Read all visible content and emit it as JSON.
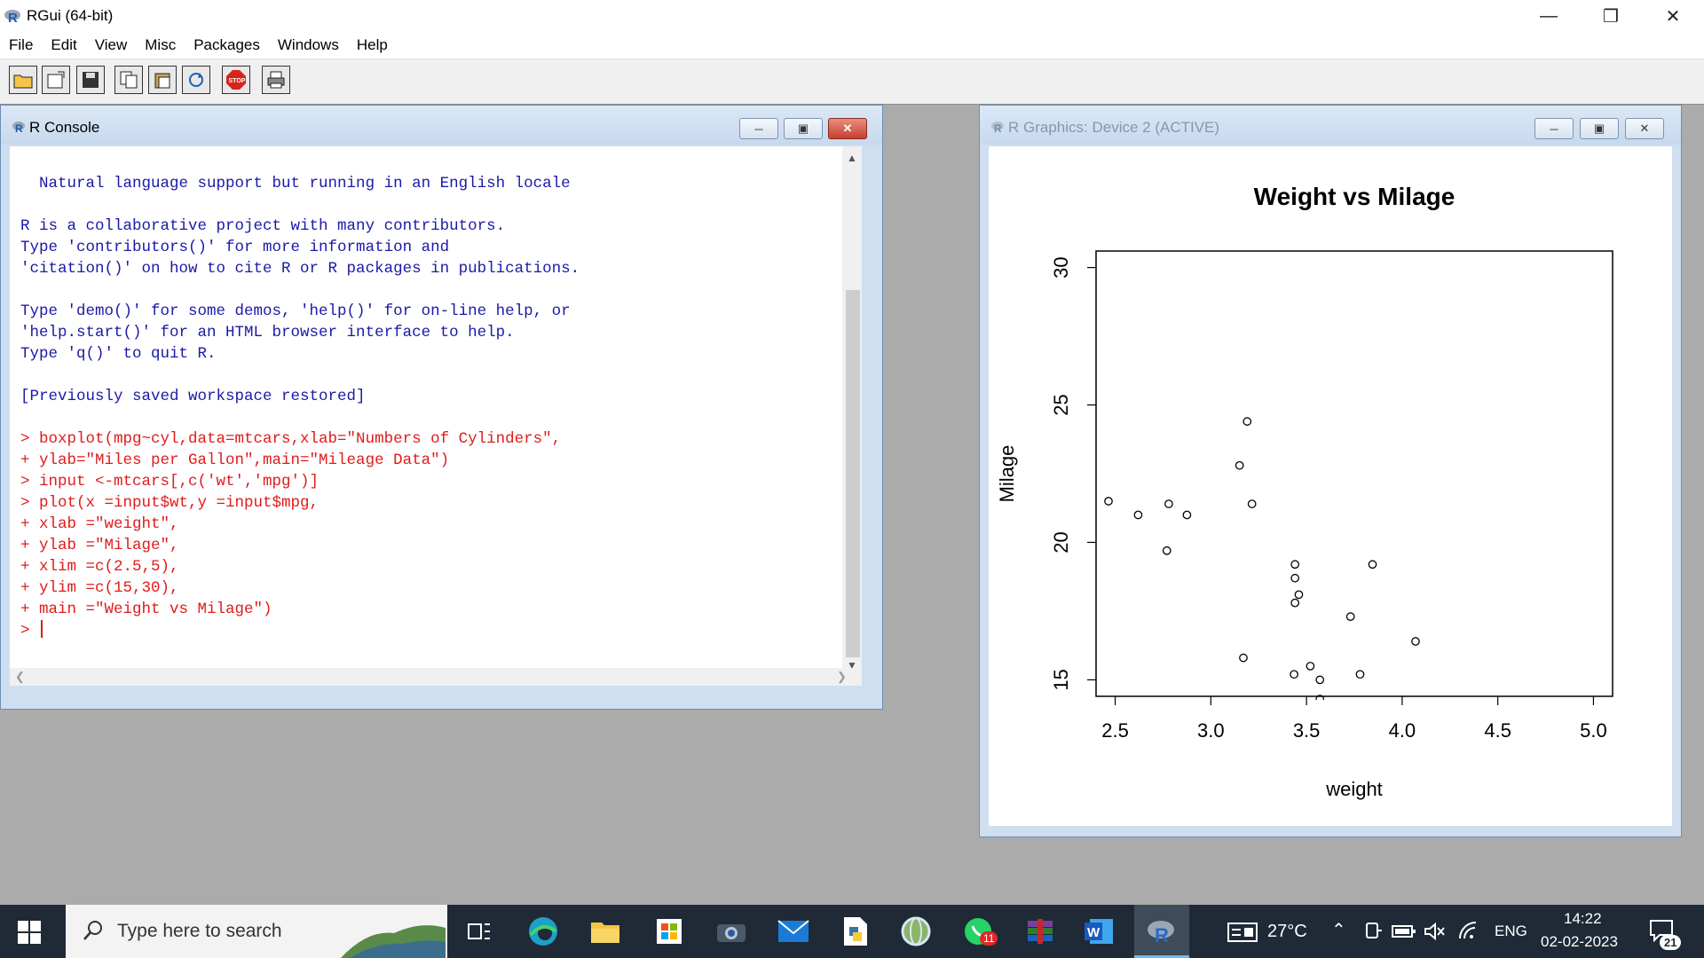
{
  "app": {
    "title": "RGui (64-bit)"
  },
  "menu": [
    "File",
    "Edit",
    "View",
    "Misc",
    "Packages",
    "Windows",
    "Help"
  ],
  "console": {
    "title": "R Console",
    "intro_lines": [
      "  Natural language support but running in an English locale",
      "",
      "R is a collaborative project with many contributors.",
      "Type 'contributors()' for more information and",
      "'citation()' on how to cite R or R packages in publications.",
      "",
      "Type 'demo()' for some demos, 'help()' for on-line help, or",
      "'help.start()' for an HTML browser interface to help.",
      "Type 'q()' to quit R.",
      "",
      "[Previously saved workspace restored]",
      ""
    ],
    "command_lines": [
      "> boxplot(mpg~cyl,data=mtcars,xlab=\"Numbers of Cylinders\",",
      "+ ylab=\"Miles per Gallon\",main=\"Mileage Data\")",
      "> input <-mtcars[,c('wt','mpg')]",
      "> plot(x =input$wt,y =input$mpg,",
      "+ xlab =\"weight\",",
      "+ ylab =\"Milage\",",
      "+ xlim =c(2.5,5),",
      "+ ylim =c(15,30),",
      "+ main =\"Weight vs Milage\")"
    ],
    "prompt": "> "
  },
  "graphics": {
    "title": "R Graphics: Device 2 (ACTIVE)"
  },
  "chart_data": {
    "type": "scatter",
    "title": "Weight vs Milage",
    "xlabel": "weight",
    "ylabel": "Milage",
    "xlim": [
      2.4,
      5.1
    ],
    "ylim": [
      14.4,
      30.6
    ],
    "xticks": [
      "2.5",
      "3.0",
      "3.5",
      "4.0",
      "4.5",
      "5.0"
    ],
    "yticks": [
      "15",
      "20",
      "25",
      "30"
    ],
    "points": [
      {
        "x": 2.465,
        "y": 21.5
      },
      {
        "x": 2.62,
        "y": 21.0
      },
      {
        "x": 2.78,
        "y": 21.4
      },
      {
        "x": 2.77,
        "y": 19.7
      },
      {
        "x": 2.875,
        "y": 21.0
      },
      {
        "x": 3.15,
        "y": 22.8
      },
      {
        "x": 3.19,
        "y": 24.4
      },
      {
        "x": 3.215,
        "y": 21.4
      },
      {
        "x": 3.17,
        "y": 15.8
      },
      {
        "x": 3.44,
        "y": 19.2
      },
      {
        "x": 3.44,
        "y": 18.7
      },
      {
        "x": 3.44,
        "y": 17.8
      },
      {
        "x": 3.46,
        "y": 18.1
      },
      {
        "x": 3.435,
        "y": 15.2
      },
      {
        "x": 3.52,
        "y": 15.5
      },
      {
        "x": 3.57,
        "y": 15.0
      },
      {
        "x": 3.73,
        "y": 17.3
      },
      {
        "x": 3.78,
        "y": 15.2
      },
      {
        "x": 3.845,
        "y": 19.2
      },
      {
        "x": 4.07,
        "y": 16.4
      },
      {
        "x": 3.57,
        "y": 14.3
      }
    ]
  },
  "taskbar": {
    "search_placeholder": "Type here to search",
    "weather": "27°C",
    "language": "ENG",
    "time": "14:22",
    "date": "02-02-2023",
    "whatsapp_badge": "11",
    "notification_count": "21"
  }
}
